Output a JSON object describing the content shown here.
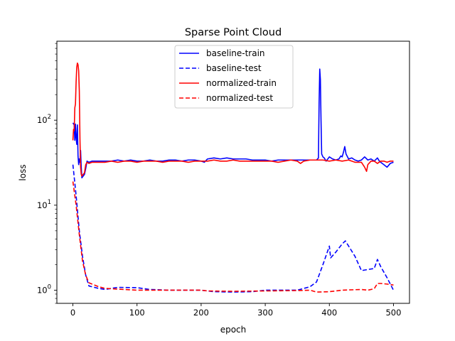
{
  "chart_data": {
    "type": "line",
    "title": "Sparse Point Cloud",
    "xlabel": "epoch",
    "ylabel": "loss",
    "yscale": "log",
    "xlim": [
      -25,
      525
    ],
    "ylim": [
      0.7,
      850
    ],
    "grid": false,
    "legend_position": "top-center",
    "x_ticks": [
      0,
      100,
      200,
      300,
      400,
      500
    ],
    "x_tick_labels": [
      "0",
      "100",
      "200",
      "300",
      "400",
      "500"
    ],
    "y_ticks": [
      1,
      10,
      100
    ],
    "y_tick_labels": [
      "10^0",
      "10^1",
      "10^2"
    ],
    "series": [
      {
        "name": "baseline-train",
        "color": "#0000ff",
        "dash": "solid",
        "points": [
          [
            0,
            93
          ],
          [
            2,
            88
          ],
          [
            3,
            58
          ],
          [
            4,
            90
          ],
          [
            5,
            62
          ],
          [
            6,
            52
          ],
          [
            7,
            88
          ],
          [
            8,
            38
          ],
          [
            9,
            30
          ],
          [
            10,
            35
          ],
          [
            11,
            32
          ],
          [
            12,
            44
          ],
          [
            13,
            28
          ],
          [
            14,
            21
          ],
          [
            16,
            22
          ],
          [
            18,
            23
          ],
          [
            20,
            27
          ],
          [
            22,
            33
          ],
          [
            25,
            32
          ],
          [
            30,
            33
          ],
          [
            40,
            33
          ],
          [
            50,
            33
          ],
          [
            60,
            33
          ],
          [
            70,
            34
          ],
          [
            80,
            33
          ],
          [
            90,
            34
          ],
          [
            100,
            33
          ],
          [
            110,
            33
          ],
          [
            120,
            34
          ],
          [
            130,
            33
          ],
          [
            140,
            33
          ],
          [
            150,
            34
          ],
          [
            160,
            34
          ],
          [
            170,
            33
          ],
          [
            180,
            34
          ],
          [
            190,
            34
          ],
          [
            200,
            33
          ],
          [
            205,
            32
          ],
          [
            210,
            35
          ],
          [
            220,
            36
          ],
          [
            230,
            35
          ],
          [
            240,
            36
          ],
          [
            250,
            35
          ],
          [
            260,
            35
          ],
          [
            270,
            35
          ],
          [
            280,
            34
          ],
          [
            290,
            34
          ],
          [
            300,
            34
          ],
          [
            310,
            33
          ],
          [
            320,
            34
          ],
          [
            330,
            34
          ],
          [
            340,
            34
          ],
          [
            350,
            34
          ],
          [
            360,
            34
          ],
          [
            370,
            34
          ],
          [
            380,
            34
          ],
          [
            383,
            36
          ],
          [
            384,
            160
          ],
          [
            385,
            400
          ],
          [
            386,
            300
          ],
          [
            387,
            100
          ],
          [
            388,
            40
          ],
          [
            390,
            37
          ],
          [
            392,
            36
          ],
          [
            395,
            33
          ],
          [
            400,
            37
          ],
          [
            405,
            35
          ],
          [
            410,
            34
          ],
          [
            415,
            35
          ],
          [
            418,
            38
          ],
          [
            420,
            37
          ],
          [
            422,
            42
          ],
          [
            424,
            49
          ],
          [
            426,
            40
          ],
          [
            430,
            35
          ],
          [
            435,
            36
          ],
          [
            440,
            34
          ],
          [
            445,
            33
          ],
          [
            450,
            34
          ],
          [
            455,
            37
          ],
          [
            460,
            34
          ],
          [
            465,
            35
          ],
          [
            470,
            33
          ],
          [
            475,
            36
          ],
          [
            478,
            33
          ],
          [
            480,
            32
          ],
          [
            485,
            30
          ],
          [
            490,
            28
          ],
          [
            495,
            31
          ],
          [
            500,
            32
          ]
        ]
      },
      {
        "name": "baseline-test",
        "color": "#0000ff",
        "dash": "dashed",
        "points": [
          [
            0,
            30
          ],
          [
            5,
            13
          ],
          [
            10,
            5
          ],
          [
            15,
            2.5
          ],
          [
            20,
            1.5
          ],
          [
            25,
            1.12
          ],
          [
            40,
            1.05
          ],
          [
            50,
            1.02
          ],
          [
            70,
            1.08
          ],
          [
            100,
            1.07
          ],
          [
            120,
            1.02
          ],
          [
            150,
            1.0
          ],
          [
            200,
            1.0
          ],
          [
            220,
            0.96
          ],
          [
            250,
            0.95
          ],
          [
            280,
            0.96
          ],
          [
            300,
            1.0
          ],
          [
            330,
            1.0
          ],
          [
            350,
            1.0
          ],
          [
            370,
            1.1
          ],
          [
            380,
            1.25
          ],
          [
            390,
            2.0
          ],
          [
            400,
            3.3
          ],
          [
            402,
            2.4
          ],
          [
            410,
            2.8
          ],
          [
            420,
            3.5
          ],
          [
            425,
            3.8
          ],
          [
            440,
            2.5
          ],
          [
            450,
            1.7
          ],
          [
            460,
            1.75
          ],
          [
            470,
            1.8
          ],
          [
            475,
            2.3
          ],
          [
            480,
            1.9
          ],
          [
            490,
            1.4
          ],
          [
            500,
            1.0
          ]
        ]
      },
      {
        "name": "normalized-train",
        "color": "#ff0000",
        "dash": "solid",
        "points": [
          [
            0,
            58
          ],
          [
            1,
            78
          ],
          [
            2,
            75
          ],
          [
            3,
            140
          ],
          [
            4,
            155
          ],
          [
            5,
            280
          ],
          [
            6,
            420
          ],
          [
            7,
            470
          ],
          [
            8,
            450
          ],
          [
            9,
            380
          ],
          [
            10,
            220
          ],
          [
            11,
            60
          ],
          [
            12,
            28
          ],
          [
            13,
            23
          ],
          [
            14,
            22
          ],
          [
            16,
            23
          ],
          [
            18,
            24
          ],
          [
            20,
            30
          ],
          [
            22,
            32
          ],
          [
            25,
            31
          ],
          [
            30,
            32
          ],
          [
            40,
            32
          ],
          [
            50,
            32
          ],
          [
            60,
            33
          ],
          [
            70,
            32
          ],
          [
            80,
            33
          ],
          [
            90,
            33
          ],
          [
            100,
            32
          ],
          [
            110,
            33
          ],
          [
            120,
            33
          ],
          [
            130,
            33
          ],
          [
            140,
            32
          ],
          [
            150,
            33
          ],
          [
            160,
            33
          ],
          [
            170,
            33
          ],
          [
            180,
            32
          ],
          [
            190,
            33
          ],
          [
            200,
            33
          ],
          [
            210,
            33
          ],
          [
            220,
            34
          ],
          [
            230,
            33
          ],
          [
            240,
            33
          ],
          [
            250,
            34
          ],
          [
            260,
            33
          ],
          [
            270,
            33
          ],
          [
            280,
            33
          ],
          [
            290,
            33
          ],
          [
            300,
            33
          ],
          [
            310,
            33
          ],
          [
            320,
            32
          ],
          [
            330,
            33
          ],
          [
            340,
            34
          ],
          [
            350,
            33
          ],
          [
            355,
            31
          ],
          [
            360,
            33
          ],
          [
            370,
            34
          ],
          [
            380,
            34
          ],
          [
            390,
            34
          ],
          [
            400,
            33
          ],
          [
            410,
            34
          ],
          [
            420,
            33
          ],
          [
            430,
            34
          ],
          [
            440,
            32
          ],
          [
            450,
            32
          ],
          [
            455,
            28
          ],
          [
            458,
            25
          ],
          [
            460,
            30
          ],
          [
            465,
            33
          ],
          [
            470,
            33
          ],
          [
            475,
            31
          ],
          [
            480,
            33
          ],
          [
            485,
            33
          ],
          [
            490,
            32
          ],
          [
            495,
            33
          ],
          [
            500,
            33
          ]
        ]
      },
      {
        "name": "normalized-test",
        "color": "#ff0000",
        "dash": "dashed",
        "points": [
          [
            0,
            19
          ],
          [
            5,
            10
          ],
          [
            10,
            4.5
          ],
          [
            15,
            2.2
          ],
          [
            20,
            1.5
          ],
          [
            25,
            1.22
          ],
          [
            40,
            1.1
          ],
          [
            50,
            1.05
          ],
          [
            80,
            1.02
          ],
          [
            100,
            1.0
          ],
          [
            150,
            1.0
          ],
          [
            200,
            1.0
          ],
          [
            210,
            0.98
          ],
          [
            250,
            0.97
          ],
          [
            300,
            0.98
          ],
          [
            350,
            0.99
          ],
          [
            370,
            1.0
          ],
          [
            380,
            0.95
          ],
          [
            400,
            0.96
          ],
          [
            420,
            1.0
          ],
          [
            450,
            1.02
          ],
          [
            460,
            1.0
          ],
          [
            470,
            1.04
          ],
          [
            475,
            1.2
          ],
          [
            480,
            1.2
          ],
          [
            490,
            1.18
          ],
          [
            500,
            1.15
          ]
        ]
      }
    ]
  }
}
